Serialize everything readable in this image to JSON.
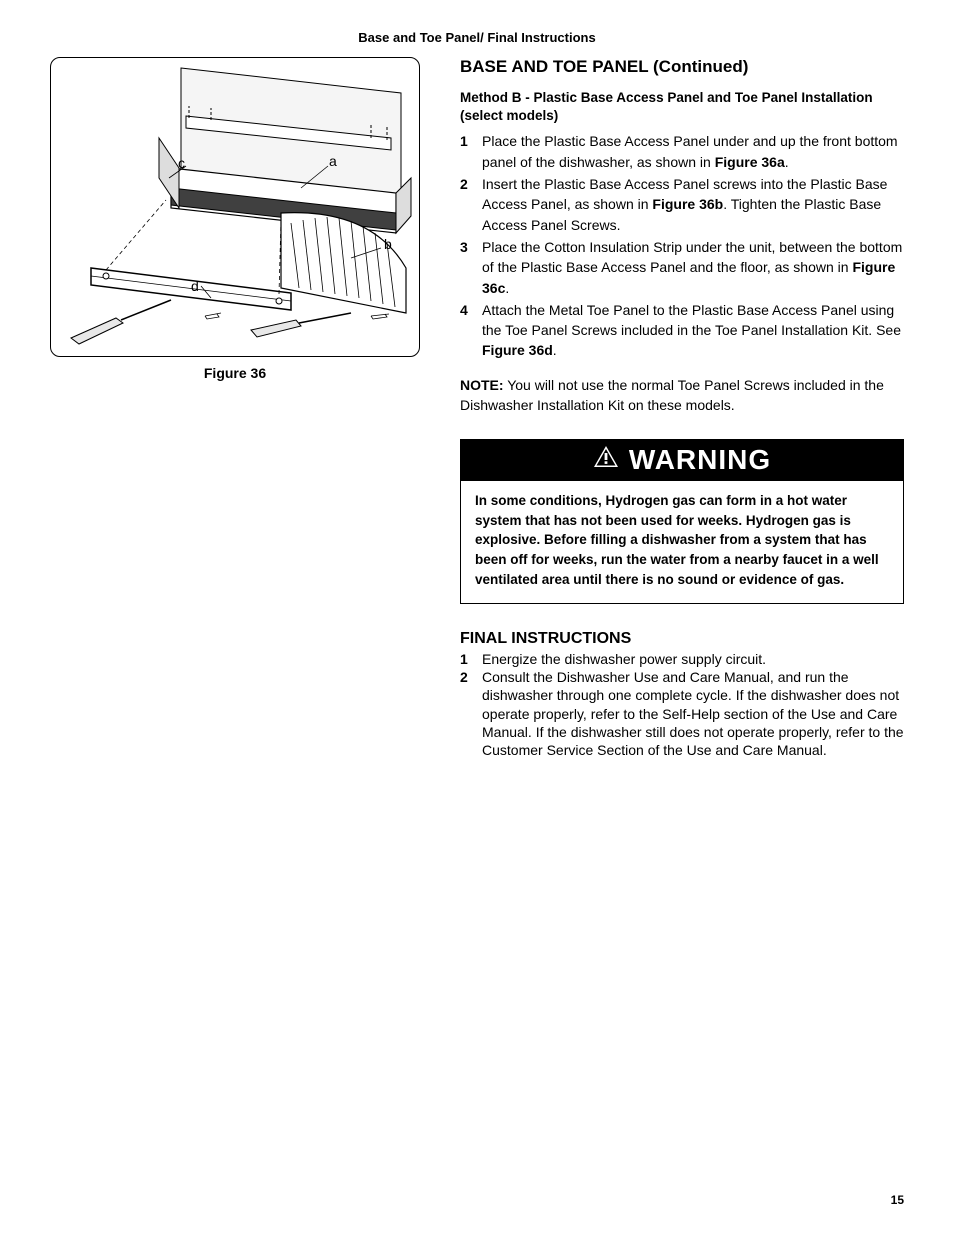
{
  "header": "Base and Toe Panel/ Final Instructions",
  "figure": {
    "caption": "Figure 36",
    "labels": {
      "a": "a",
      "b": "b",
      "c": "c",
      "d": "d"
    }
  },
  "section1": {
    "title": "BASE AND TOE PANEL (Continued)",
    "method_title": "Method B - Plastic Base Access Panel and Toe Panel Installation (select models)",
    "steps": [
      {
        "n": "1",
        "pre": "Place the Plastic Base Access Panel under and up the front bottom panel of the dishwasher, as shown in ",
        "bold": "Figure 36a",
        "post": "."
      },
      {
        "n": "2",
        "pre": "Insert the Plastic Base Access Panel screws into the Plastic Base Access Panel, as shown in ",
        "bold": "Figure 36b",
        "post": ". Tighten the Plastic Base Access Panel Screws."
      },
      {
        "n": "3",
        "pre": "Place  the Cotton Insulation Strip under the unit, between the bottom of the Plastic Base Access Panel and the floor, as shown in ",
        "bold": "Figure 36c",
        "post": "."
      },
      {
        "n": "4",
        "pre": "Attach the Metal Toe Panel to the Plastic Base Access Panel using the Toe Panel Screws included in the Toe Panel Installation Kit. See ",
        "bold": "Figure 36d",
        "post": "."
      }
    ]
  },
  "note": {
    "label": "NOTE:",
    "text": " You will not use the normal Toe Panel Screws included in the Dishwasher Installation Kit on these models."
  },
  "warning": {
    "header": "WARNING",
    "body": "In some conditions, Hydrogen gas can form in a hot water system that has not been used for weeks.  Hydrogen gas is explosive.  Before filling a dishwasher from a system that has been off for weeks, run the water from a nearby faucet in a well ventilated area until there is no sound or evidence of gas."
  },
  "final": {
    "title": "FINAL INSTRUCTIONS",
    "steps": [
      {
        "n": "1",
        "text": "Energize the dishwasher power supply circuit."
      },
      {
        "n": "2",
        "text": "Consult the Dishwasher Use and Care Manual, and run the dishwasher through one complete cycle. If the dishwasher does not operate properly, refer to the Self-Help section of the Use and Care Manual. If the dishwasher still does not operate properly, refer to the Customer Service Section of the Use and Care Manual."
      }
    ]
  },
  "page_number": "15",
  "colors": {
    "text": "#000000",
    "bg": "#ffffff",
    "warn_bg": "#000000",
    "warn_fg": "#ffffff"
  }
}
